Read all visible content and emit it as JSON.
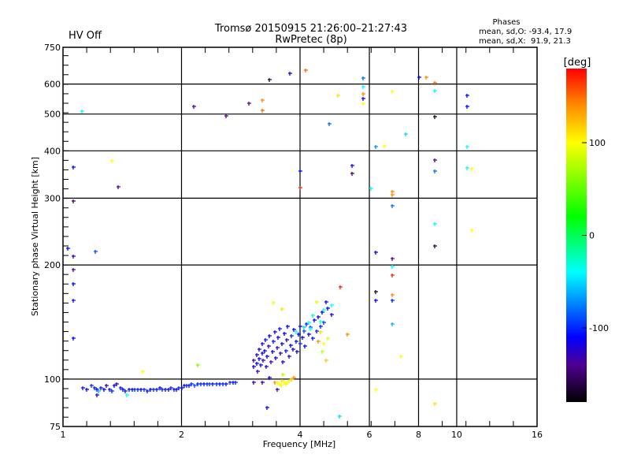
{
  "header": {
    "status": "HV Off",
    "status_color": "#ff0000",
    "title_line1": "Tromsø 20150915 21:26:00–21:27:43",
    "title_line2": "RwPretec (8p)",
    "phases_title": "Phases",
    "phases_o": "mean, sd,O: -93.4, 17.9",
    "phases_x": "mean, sd,X:  91.9, 21.3"
  },
  "colorbar": {
    "label": "[deg]",
    "range": [
      -180,
      180
    ],
    "ticks": [
      {
        "value": 100,
        "label": "100"
      },
      {
        "value": 0,
        "label": "0"
      },
      {
        "value": -100,
        "label": "-100"
      }
    ]
  },
  "chart_data": {
    "type": "scatter",
    "title": "Tromsø 20150915 21:26:00–21:27:43 RwPretec (8p)",
    "xlabel": "Frequency [MHz]",
    "ylabel": "Stationary phase Virtual Height [km]",
    "xscale": "log",
    "yscale": "log",
    "xlim": [
      1,
      16
    ],
    "ylim": [
      75,
      750
    ],
    "xticks": [
      {
        "value": 1,
        "label": "1"
      },
      {
        "value": 2,
        "label": "2"
      },
      {
        "value": 4,
        "label": "4"
      },
      {
        "value": 6,
        "label": "6"
      },
      {
        "value": 8,
        "label": "8"
      },
      {
        "value": 10,
        "label": "10"
      },
      {
        "value": 16,
        "label": "16"
      }
    ],
    "yticks": [
      {
        "value": 75,
        "label": "75"
      },
      {
        "value": 100,
        "label": "100"
      },
      {
        "value": 200,
        "label": "200"
      },
      {
        "value": 300,
        "label": "300"
      },
      {
        "value": 400,
        "label": "400"
      },
      {
        "value": 500,
        "label": "500"
      },
      {
        "value": 600,
        "label": "600"
      },
      {
        "value": 750,
        "label": "750"
      }
    ],
    "xgrid": [
      2,
      4,
      6,
      8,
      10
    ],
    "ygrid": [
      100,
      200,
      300,
      400,
      500,
      600
    ],
    "color_by": "phase (deg)",
    "points_fields": [
      "frequency_mhz",
      "height_km",
      "phase_deg"
    ],
    "points": [
      [
        1.12,
        95,
        -105
      ],
      [
        1.15,
        94,
        -110
      ],
      [
        1.18,
        96,
        -100
      ],
      [
        1.2,
        95,
        -105
      ],
      [
        1.22,
        94,
        -110
      ],
      [
        1.22,
        91,
        -120
      ],
      [
        1.23,
        93,
        -60
      ],
      [
        1.25,
        95,
        -105
      ],
      [
        1.27,
        94,
        -110
      ],
      [
        1.29,
        96,
        -125
      ],
      [
        1.31,
        94,
        -105
      ],
      [
        1.33,
        93,
        -100
      ],
      [
        1.35,
        96,
        -120
      ],
      [
        1.37,
        97,
        -130
      ],
      [
        1.4,
        95,
        -105
      ],
      [
        1.42,
        94,
        -110
      ],
      [
        1.44,
        93,
        -100
      ],
      [
        1.45,
        91,
        -40
      ],
      [
        1.47,
        94,
        -105
      ],
      [
        1.5,
        94,
        -110
      ],
      [
        1.52,
        94,
        -100
      ],
      [
        1.55,
        94,
        -105
      ],
      [
        1.58,
        94,
        -110
      ],
      [
        1.61,
        94,
        -100
      ],
      [
        1.64,
        93,
        -105
      ],
      [
        1.67,
        94,
        -110
      ],
      [
        1.7,
        94,
        -100
      ],
      [
        1.73,
        94,
        -105
      ],
      [
        1.76,
        95,
        -110
      ],
      [
        1.79,
        94,
        -100
      ],
      [
        1.82,
        94,
        -105
      ],
      [
        1.85,
        94,
        -115
      ],
      [
        1.88,
        95,
        -100
      ],
      [
        1.91,
        94,
        -105
      ],
      [
        1.94,
        94,
        -110
      ],
      [
        1.97,
        95,
        -100
      ],
      [
        2.0,
        95,
        -105
      ],
      [
        2.03,
        96,
        -110
      ],
      [
        2.06,
        96,
        -100
      ],
      [
        2.09,
        96,
        -105
      ],
      [
        2.12,
        97,
        -100
      ],
      [
        2.16,
        96,
        -90
      ],
      [
        2.2,
        97,
        -105
      ],
      [
        2.24,
        97,
        -100
      ],
      [
        2.28,
        97,
        -105
      ],
      [
        2.32,
        97,
        -100
      ],
      [
        2.36,
        97,
        -95
      ],
      [
        2.4,
        97,
        -105
      ],
      [
        2.45,
        97,
        -100
      ],
      [
        2.5,
        97,
        -105
      ],
      [
        2.55,
        97,
        -100
      ],
      [
        2.6,
        97,
        -105
      ],
      [
        2.65,
        98,
        -100
      ],
      [
        2.7,
        98,
        -105
      ],
      [
        2.74,
        98,
        -100
      ],
      [
        3.05,
        98,
        -130
      ],
      [
        3.2,
        98,
        -130
      ],
      [
        3.35,
        101,
        -120
      ],
      [
        3.45,
        98,
        140
      ],
      [
        3.5,
        98,
        90
      ],
      [
        3.55,
        97,
        100
      ],
      [
        3.58,
        96,
        100
      ],
      [
        3.6,
        99,
        110
      ],
      [
        3.62,
        103,
        80
      ],
      [
        3.65,
        98,
        95
      ],
      [
        3.68,
        97,
        105
      ],
      [
        3.7,
        98,
        100
      ],
      [
        3.75,
        99,
        90
      ],
      [
        3.8,
        100,
        120
      ],
      [
        3.85,
        101,
        140
      ],
      [
        3.05,
        108,
        -115
      ],
      [
        3.05,
        112,
        -130
      ],
      [
        3.1,
        110,
        -110
      ],
      [
        3.1,
        116,
        -120
      ],
      [
        3.12,
        105,
        -130
      ],
      [
        3.15,
        113,
        -110
      ],
      [
        3.15,
        120,
        -125
      ],
      [
        3.18,
        109,
        -105
      ],
      [
        3.2,
        117,
        -110
      ],
      [
        3.2,
        124,
        -120
      ],
      [
        3.22,
        112,
        -130
      ],
      [
        3.25,
        119,
        -110
      ],
      [
        3.27,
        127,
        -105
      ],
      [
        3.28,
        108,
        -120
      ],
      [
        3.3,
        115,
        -110
      ],
      [
        3.32,
        122,
        -125
      ],
      [
        3.35,
        130,
        -110
      ],
      [
        3.37,
        111,
        -130
      ],
      [
        3.4,
        118,
        -110
      ],
      [
        3.42,
        126,
        -105
      ],
      [
        3.45,
        133,
        -120
      ],
      [
        3.47,
        114,
        -110
      ],
      [
        3.5,
        121,
        -125
      ],
      [
        3.52,
        129,
        -110
      ],
      [
        3.55,
        136,
        -105
      ],
      [
        3.57,
        117,
        -130
      ],
      [
        3.6,
        124,
        -110
      ],
      [
        3.62,
        111,
        -120
      ],
      [
        3.65,
        132,
        -110
      ],
      [
        3.68,
        119,
        -105
      ],
      [
        3.7,
        127,
        -120
      ],
      [
        3.72,
        138,
        -110
      ],
      [
        3.75,
        115,
        -130
      ],
      [
        3.78,
        123,
        -110
      ],
      [
        3.8,
        130,
        -100
      ],
      [
        3.83,
        120,
        -120
      ],
      [
        3.86,
        135,
        -110
      ],
      [
        3.9,
        126,
        -105
      ],
      [
        3.93,
        118,
        -120
      ],
      [
        3.96,
        131,
        -110
      ],
      [
        4.0,
        124,
        -100
      ],
      [
        4.0,
        138,
        -115
      ],
      [
        4.05,
        129,
        -110
      ],
      [
        4.1,
        134,
        -90
      ],
      [
        4.12,
        122,
        -110
      ],
      [
        4.15,
        140,
        -100
      ],
      [
        4.2,
        131,
        -110
      ],
      [
        4.25,
        137,
        -90
      ],
      [
        4.3,
        128,
        -105
      ],
      [
        4.35,
        143,
        -110
      ],
      [
        4.4,
        134,
        -100
      ],
      [
        4.45,
        146,
        -115
      ],
      [
        4.5,
        138,
        -100
      ],
      [
        4.55,
        150,
        -110
      ],
      [
        4.6,
        141,
        -95
      ],
      [
        4.7,
        154,
        -110
      ],
      [
        4.8,
        148,
        -120
      ],
      [
        4.65,
        160,
        -110
      ],
      [
        3.9,
        133,
        -40
      ],
      [
        4.1,
        137,
        -50
      ],
      [
        4.2,
        141,
        -40
      ],
      [
        4.25,
        136,
        -40
      ],
      [
        4.3,
        147,
        -30
      ],
      [
        4.5,
        142,
        -40
      ],
      [
        4.6,
        152,
        -30
      ],
      [
        4.8,
        157,
        -40
      ],
      [
        4.5,
        133,
        110
      ],
      [
        4.7,
        128,
        90
      ],
      [
        4.6,
        124,
        100
      ],
      [
        4.55,
        118,
        80
      ],
      [
        4.65,
        112,
        120
      ],
      [
        4.45,
        126,
        140
      ],
      [
        4.4,
        160,
        90
      ],
      [
        3.6,
        153,
        110
      ],
      [
        3.42,
        159,
        95
      ],
      [
        1.117,
        508,
        -40
      ],
      [
        1.06,
        363,
        -110
      ],
      [
        1.06,
        295,
        -150
      ],
      [
        1.03,
        221,
        -110
      ],
      [
        1.06,
        211,
        -120
      ],
      [
        1.06,
        194,
        -140
      ],
      [
        1.06,
        178,
        -110
      ],
      [
        1.06,
        161,
        -105
      ],
      [
        1.06,
        128,
        -110
      ],
      [
        1.21,
        217,
        -90
      ],
      [
        1.33,
        376,
        100
      ],
      [
        1.38,
        322,
        -140
      ],
      [
        1.59,
        105,
        100
      ],
      [
        2.2,
        109,
        60
      ],
      [
        2.15,
        524,
        -140
      ],
      [
        2.6,
        494,
        -140
      ],
      [
        2.96,
        533,
        -140
      ],
      [
        3.2,
        544,
        140
      ],
      [
        3.2,
        512,
        150
      ],
      [
        3.34,
        617,
        -160
      ],
      [
        3.77,
        641,
        -110
      ],
      [
        4.14,
        654,
        150
      ],
      [
        4.0,
        354,
        -110
      ],
      [
        4.0,
        320,
        170
      ],
      [
        4.75,
        472,
        -80
      ],
      [
        5.0,
        559,
        110
      ],
      [
        5.43,
        366,
        -120
      ],
      [
        5.43,
        348,
        -150
      ],
      [
        5.77,
        621,
        -80
      ],
      [
        5.77,
        590,
        -40
      ],
      [
        5.77,
        566,
        140
      ],
      [
        5.77,
        550,
        -120
      ],
      [
        5.77,
        533,
        100
      ],
      [
        6.05,
        318,
        -40
      ],
      [
        6.23,
        411,
        -70
      ],
      [
        6.23,
        216,
        -110
      ],
      [
        6.55,
        412,
        100
      ],
      [
        6.86,
        574,
        100
      ],
      [
        6.86,
        313,
        140
      ],
      [
        6.86,
        307,
        140
      ],
      [
        6.86,
        287,
        -80
      ],
      [
        7.4,
        443,
        -50
      ],
      [
        6.86,
        208,
        -140
      ],
      [
        6.86,
        198,
        -40
      ],
      [
        6.86,
        188,
        170
      ],
      [
        6.86,
        167,
        140
      ],
      [
        6.86,
        161,
        -100
      ],
      [
        6.86,
        140,
        -60
      ],
      [
        6.23,
        170,
        -170
      ],
      [
        6.23,
        161,
        -110
      ],
      [
        6.23,
        94,
        100
      ],
      [
        7.2,
        115,
        100
      ],
      [
        8.0,
        625,
        -110
      ],
      [
        8.35,
        625,
        140
      ],
      [
        8.8,
        605,
        150
      ],
      [
        8.8,
        576,
        -40
      ],
      [
        8.8,
        493,
        -170
      ],
      [
        8.8,
        378,
        -140
      ],
      [
        8.8,
        353,
        -80
      ],
      [
        8.8,
        257,
        -40
      ],
      [
        8.8,
        224,
        -160
      ],
      [
        8.8,
        86,
        110
      ],
      [
        10.6,
        560,
        -110
      ],
      [
        10.6,
        524,
        -110
      ],
      [
        10.6,
        410,
        -40
      ],
      [
        10.6,
        361,
        -40
      ],
      [
        10.9,
        358,
        100
      ],
      [
        10.9,
        247,
        100
      ],
      [
        5.04,
        80,
        -50
      ],
      [
        3.5,
        94,
        -130
      ],
      [
        3.3,
        84,
        -110
      ],
      [
        5.05,
        175,
        170
      ],
      [
        5.28,
        131,
        140
      ]
    ]
  }
}
